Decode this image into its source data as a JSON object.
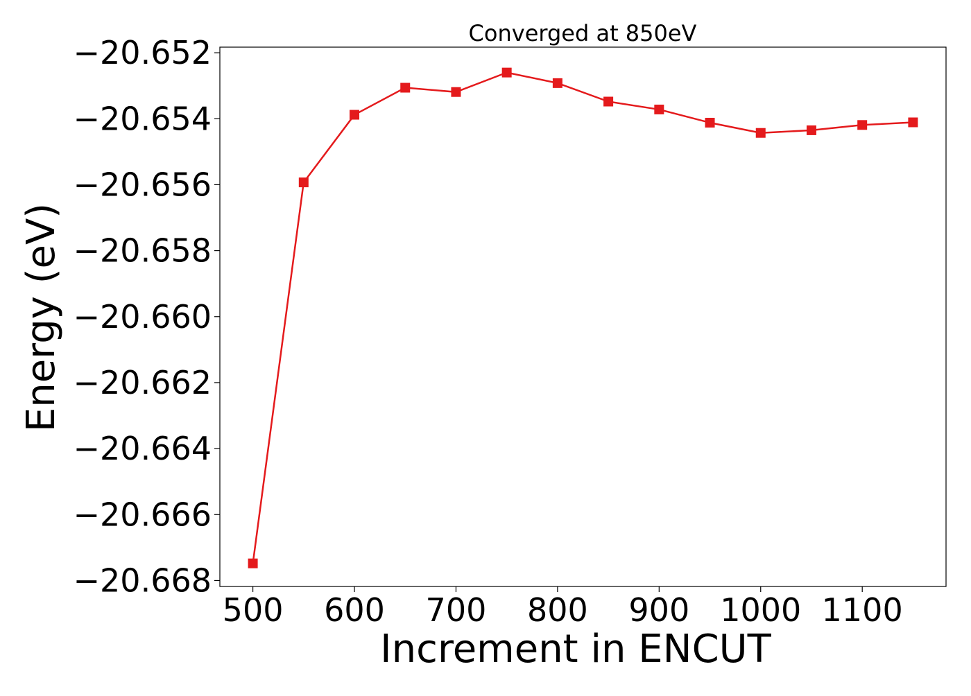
{
  "chart_data": {
    "type": "line",
    "title": "Converged at 850eV",
    "xlabel": "Increment in ENCUT",
    "ylabel": "Energy (eV)",
    "x": [
      500,
      550,
      600,
      650,
      700,
      750,
      800,
      850,
      900,
      950,
      1000,
      1050,
      1100,
      1150
    ],
    "series": [
      {
        "values": [
          -20.66748,
          -20.65593,
          -20.65388,
          -20.65306,
          -20.65319,
          -20.6526,
          -20.65292,
          -20.65348,
          -20.65372,
          -20.65412,
          -20.65443,
          -20.65435,
          -20.65419,
          -20.65411
        ],
        "color": "#e41a1c",
        "marker": "square"
      }
    ],
    "xticks": [
      500,
      600,
      700,
      800,
      900,
      1000,
      1100
    ],
    "xtick_labels": [
      "500",
      "600",
      "700",
      "800",
      "900",
      "1000",
      "1100"
    ],
    "yticks": [
      -20.652,
      -20.654,
      -20.656,
      -20.658,
      -20.66,
      -20.662,
      -20.664,
      -20.666,
      -20.668
    ],
    "ytick_labels": [
      "−20.652",
      "−20.654",
      "−20.656",
      "−20.658",
      "−20.660",
      "−20.662",
      "−20.664",
      "−20.666",
      "−20.668"
    ],
    "xlim": [
      467.5,
      1182.5
    ],
    "ylim": [
      -20.66818,
      -20.65183
    ],
    "grid": false,
    "legend": false
  }
}
